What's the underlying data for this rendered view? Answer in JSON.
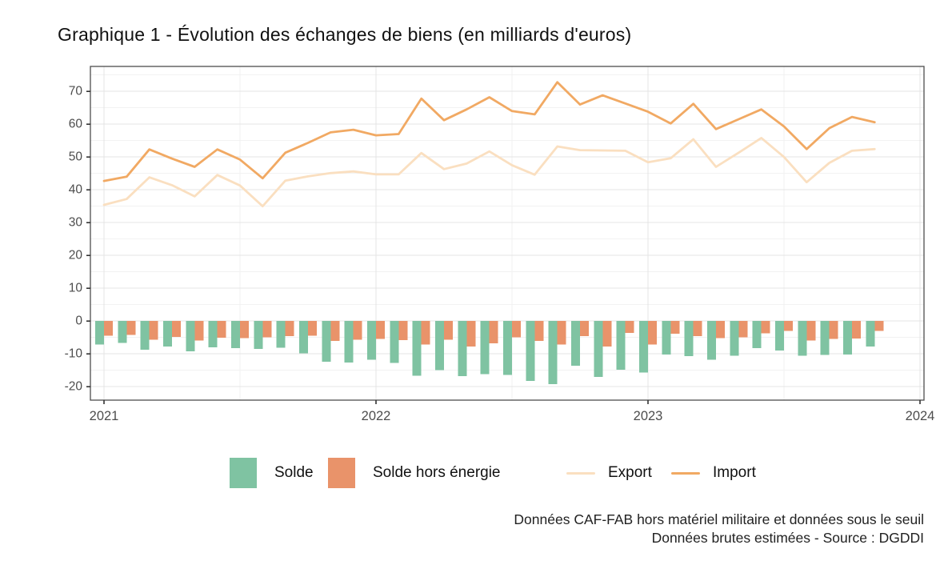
{
  "title": "Graphique 1 - Évolution des échanges de biens (en milliards d'euros)",
  "legend": {
    "solde": "Solde",
    "solde_hors_energie": "Solde hors énergie",
    "export": "Export",
    "import": "Import"
  },
  "footer": {
    "line1": "Données CAF-FAB hors matériel militaire et données sous le seuil",
    "line2": "Données brutes estimées - Source : DGDDI"
  },
  "colors": {
    "solde": "#7fc3a2",
    "solde_hors_energie": "#e9936a",
    "export": "#fadfc0",
    "import": "#f1a963",
    "grid_major": "#e4e4e4",
    "grid_minor": "#f2f2f2",
    "panel_border": "#4d4d4d",
    "tick": "#333333",
    "axis_text": "#4d4d4d"
  },
  "chart_data": {
    "type": "combo (bar + line)",
    "title": "Graphique 1 - Évolution des échanges de biens (en milliards d'euros)",
    "xlabel": "",
    "ylabel": "",
    "unit": "milliards d'euros",
    "x": [
      "2021-01",
      "2021-02",
      "2021-03",
      "2021-04",
      "2021-05",
      "2021-06",
      "2021-07",
      "2021-08",
      "2021-09",
      "2021-10",
      "2021-11",
      "2021-12",
      "2022-01",
      "2022-02",
      "2022-03",
      "2022-04",
      "2022-05",
      "2022-06",
      "2022-07",
      "2022-08",
      "2022-09",
      "2022-10",
      "2022-11",
      "2022-12",
      "2023-01",
      "2023-02",
      "2023-03",
      "2023-04",
      "2023-05",
      "2023-06",
      "2023-07",
      "2023-08",
      "2023-09",
      "2023-10",
      "2023-11"
    ],
    "x_tick_labels": [
      "2021",
      "2022",
      "2023",
      "2024"
    ],
    "x_tick_month_index": [
      0,
      12,
      24,
      36
    ],
    "x_minor_month_index": [
      6,
      18,
      30
    ],
    "y_ticks": [
      -20,
      -10,
      0,
      10,
      20,
      30,
      40,
      50,
      60,
      70
    ],
    "ylim": [
      -24.1,
      77.6
    ],
    "grid": "major and minor, light grey on white",
    "legend_position": "bottom",
    "series": [
      {
        "name": "Solde",
        "type": "bar",
        "color": "#7fc3a2",
        "values": [
          -7.2,
          -6.6,
          -8.7,
          -7.7,
          -9.2,
          -8.0,
          -8.2,
          -8.5,
          -8.1,
          -9.8,
          -12.4,
          -12.6,
          -11.8,
          -12.8,
          -16.7,
          -15.0,
          -16.8,
          -16.2,
          -16.4,
          -18.2,
          -19.2,
          -13.6,
          -17.0,
          -14.8,
          -15.7,
          -10.2,
          -10.7,
          -11.8,
          -10.5,
          -8.3,
          -9.0,
          -10.6,
          -10.3,
          -10.2,
          -7.7
        ]
      },
      {
        "name": "Solde hors énergie",
        "type": "bar",
        "color": "#e9936a",
        "values": [
          -4.5,
          -4.2,
          -5.7,
          -4.8,
          -5.9,
          -5.1,
          -5.2,
          -5.0,
          -4.6,
          -4.5,
          -6.0,
          -5.7,
          -5.4,
          -5.8,
          -7.1,
          -5.7,
          -7.7,
          -6.8,
          -4.9,
          -6.1,
          -7.2,
          -4.6,
          -7.7,
          -3.6,
          -7.2,
          -3.8,
          -4.6,
          -5.2,
          -5.0,
          -3.7,
          -3.0,
          -5.9,
          -5.4,
          -5.3,
          -3.0
        ]
      },
      {
        "name": "Export",
        "type": "line",
        "color": "#fadfc0",
        "values": [
          35.4,
          37.2,
          43.8,
          41.4,
          38.0,
          44.5,
          41.3,
          35.0,
          42.8,
          44.1,
          45.1,
          45.6,
          44.7,
          44.7,
          51.2,
          46.3,
          48.0,
          51.7,
          47.5,
          44.6,
          53.2,
          52.1,
          52.0,
          51.9,
          48.4,
          49.6,
          55.4,
          47.0,
          51.3,
          55.8,
          50.0,
          42.3,
          48.2,
          51.9,
          52.4
        ]
      },
      {
        "name": "Import",
        "type": "line",
        "color": "#f1a963",
        "values": [
          42.7,
          44.0,
          52.3,
          49.5,
          47.0,
          52.3,
          49.2,
          43.5,
          51.3,
          54.3,
          57.5,
          58.3,
          56.6,
          57.0,
          67.8,
          61.2,
          64.5,
          68.2,
          64.0,
          63.0,
          72.8,
          66.0,
          68.8,
          66.3,
          63.8,
          60.2,
          66.2,
          58.5,
          61.5,
          64.5,
          59.3,
          52.4,
          58.8,
          62.2,
          60.6
        ]
      }
    ]
  }
}
